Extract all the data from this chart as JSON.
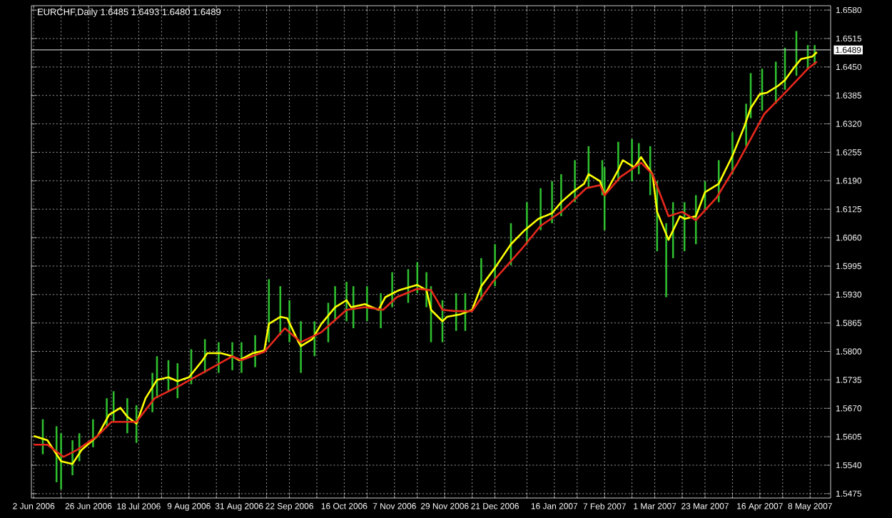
{
  "chart_data": {
    "type": "line",
    "title": "EURCHF,Daily  1.6485 1.6493 1.6480 1.6489",
    "xlim": [
      "2006-06-01",
      "2007-05-17"
    ],
    "ylim": [
      1.5465,
      1.659
    ],
    "xticks": [
      {
        "value": "2006-06-02",
        "label": "2 Jun 2006"
      },
      {
        "value": "2006-06-14",
        "label": null
      },
      {
        "value": "2006-06-26",
        "label": "26 Jun 2006"
      },
      {
        "value": "2006-07-06",
        "label": null
      },
      {
        "value": "2006-07-18",
        "label": "18 Jul 2006"
      },
      {
        "value": "2006-07-28",
        "label": null
      },
      {
        "value": "2006-08-09",
        "label": "9 Aug 2006"
      },
      {
        "value": "2006-08-21",
        "label": null
      },
      {
        "value": "2006-08-31",
        "label": "31 Aug 2006"
      },
      {
        "value": "2006-09-12",
        "label": null
      },
      {
        "value": "2006-09-22",
        "label": "22 Sep 2006"
      },
      {
        "value": "2006-10-04",
        "label": null
      },
      {
        "value": "2006-10-16",
        "label": "16 Oct 2006"
      },
      {
        "value": "2006-10-26",
        "label": null
      },
      {
        "value": "2006-11-07",
        "label": "7 Nov 2006"
      },
      {
        "value": "2006-11-17",
        "label": null
      },
      {
        "value": "2006-11-29",
        "label": "29 Nov 2006"
      },
      {
        "value": "2006-12-11",
        "label": null
      },
      {
        "value": "2006-12-21",
        "label": "21 Dec 2006"
      },
      {
        "value": "2007-01-04",
        "label": null
      },
      {
        "value": "2007-01-16",
        "label": "16 Jan 2007"
      },
      {
        "value": "2007-01-26",
        "label": null
      },
      {
        "value": "2007-02-07",
        "label": "7 Feb 2007"
      },
      {
        "value": "2007-02-19",
        "label": null
      },
      {
        "value": "2007-03-01",
        "label": "1 Mar 2007"
      },
      {
        "value": "2007-03-13",
        "label": null
      },
      {
        "value": "2007-03-23",
        "label": "23 Mar 2007"
      },
      {
        "value": "2007-04-04",
        "label": null
      },
      {
        "value": "2007-04-16",
        "label": "16 Apr 2007"
      },
      {
        "value": "2007-04-26",
        "label": null
      },
      {
        "value": "2007-05-08",
        "label": "8 May 2007"
      }
    ],
    "yticks": [
      {
        "value": 1.5475,
        "label": "1.5475"
      },
      {
        "value": 1.554,
        "label": "1.5540"
      },
      {
        "value": 1.5605,
        "label": "1.5605"
      },
      {
        "value": 1.567,
        "label": "1.5670"
      },
      {
        "value": 1.5735,
        "label": "1.5735"
      },
      {
        "value": 1.58,
        "label": "1.5800"
      },
      {
        "value": 1.5865,
        "label": "1.5865"
      },
      {
        "value": 1.593,
        "label": "1.5930"
      },
      {
        "value": 1.5995,
        "label": "1.5995"
      },
      {
        "value": 1.606,
        "label": "1.6060"
      },
      {
        "value": 1.6125,
        "label": "1.6125"
      },
      {
        "value": 1.619,
        "label": "1.6190"
      },
      {
        "value": 1.6255,
        "label": "1.6255"
      },
      {
        "value": 1.632,
        "label": "1.6320"
      },
      {
        "value": 1.6385,
        "label": "1.6385"
      },
      {
        "value": 1.645,
        "label": "1.6450"
      },
      {
        "value": 1.6515,
        "label": "1.6515"
      },
      {
        "value": 1.658,
        "label": "1.6580"
      }
    ],
    "grid": true,
    "ref_lines": [
      {
        "axis": "y",
        "value": 1.6489,
        "label": "1.6489",
        "color": "#c0c0c0"
      }
    ],
    "series": [
      {
        "type": "bar",
        "color": "#2fbf2f",
        "x": [
          "2006-06-06",
          "2006-06-12",
          "2006-06-14",
          "2006-06-19",
          "2006-06-22",
          "2006-06-28",
          "2006-07-04",
          "2006-07-07",
          "2006-07-13",
          "2006-07-17",
          "2006-07-24",
          "2006-07-26",
          "2006-07-31",
          "2006-08-04",
          "2006-08-10",
          "2006-08-16",
          "2006-08-22",
          "2006-08-28",
          "2006-09-01",
          "2006-09-07",
          "2006-09-13",
          "2006-09-18",
          "2006-09-22",
          "2006-09-27",
          "2006-10-03",
          "2006-10-09",
          "2006-10-12",
          "2006-10-17",
          "2006-10-20",
          "2006-10-26",
          "2006-11-01",
          "2006-11-06",
          "2006-11-13",
          "2006-11-17",
          "2006-11-21",
          "2006-11-23",
          "2006-11-28",
          "2006-12-04",
          "2006-12-08",
          "2006-12-15",
          "2006-12-21",
          "2006-12-28",
          "2007-01-04",
          "2007-01-10",
          "2007-01-15",
          "2007-01-19",
          "2007-01-25",
          "2007-01-31",
          "2007-02-06",
          "2007-02-07",
          "2007-02-13",
          "2007-02-19",
          "2007-02-22",
          "2007-02-27",
          "2007-03-02",
          "2007-03-06",
          "2007-03-09",
          "2007-03-14",
          "2007-03-19",
          "2007-03-23",
          "2007-03-29",
          "2007-04-04",
          "2007-04-10",
          "2007-04-12",
          "2007-04-17",
          "2007-04-23",
          "2007-04-27",
          "2007-05-02",
          "2007-05-07",
          "2007-05-10"
        ],
        "base": [
          1.5565,
          1.5501,
          1.5485,
          1.5517,
          1.5549,
          1.5581,
          1.5629,
          1.5639,
          1.5613,
          1.5591,
          1.5661,
          1.5693,
          1.5709,
          1.5693,
          1.5725,
          1.5751,
          1.5751,
          1.5757,
          1.5751,
          1.5764,
          1.5821,
          1.5837,
          1.5821,
          1.5751,
          1.5789,
          1.5821,
          1.5869,
          1.5869,
          1.5853,
          1.5869,
          1.5853,
          1.5901,
          1.5911,
          1.5933,
          1.5901,
          1.5821,
          1.5821,
          1.5847,
          1.5847,
          1.5917,
          1.5949,
          1.5997,
          1.6045,
          1.6077,
          1.6093,
          1.6109,
          1.6141,
          1.6173,
          1.6157,
          1.6077,
          1.6189,
          1.6189,
          1.6205,
          1.6157,
          1.6029,
          1.5924,
          1.6013,
          1.6029,
          1.6045,
          1.6125,
          1.6141,
          1.6205,
          1.6269,
          1.6333,
          1.635,
          1.6366,
          1.6398,
          1.643,
          1.6446,
          1.6455
        ],
        "values": [
          0.008,
          0.0128,
          0.0128,
          0.008,
          0.0064,
          0.0064,
          0.0064,
          0.007,
          0.008,
          0.0086,
          0.009,
          0.0096,
          0.0071,
          0.008,
          0.008,
          0.0077,
          0.007,
          0.0064,
          0.007,
          0.0073,
          0.0144,
          0.0112,
          0.0096,
          0.0118,
          0.008,
          0.009,
          0.008,
          0.009,
          0.0096,
          0.008,
          0.008,
          0.008,
          0.0077,
          0.0071,
          0.008,
          0.0128,
          0.0096,
          0.0086,
          0.0086,
          0.0096,
          0.0096,
          0.0096,
          0.0096,
          0.0096,
          0.0096,
          0.0096,
          0.0096,
          0.0096,
          0.008,
          0.0144,
          0.009,
          0.0096,
          0.0071,
          0.0112,
          0.016,
          0.0169,
          0.0128,
          0.0112,
          0.0112,
          0.0064,
          0.0096,
          0.0096,
          0.0097,
          0.0103,
          0.0096,
          0.0096,
          0.0096,
          0.0102,
          0.0054,
          0.0045
        ]
      },
      {
        "color": "#ffff00",
        "x": [
          "2006-06-02",
          "2006-06-08",
          "2006-06-14",
          "2006-06-19",
          "2006-06-23",
          "2006-06-30",
          "2006-07-05",
          "2006-07-10",
          "2006-07-13",
          "2006-07-17",
          "2006-07-21",
          "2006-07-26",
          "2006-07-31",
          "2006-08-04",
          "2006-08-09",
          "2006-08-15",
          "2006-08-17",
          "2006-08-23",
          "2006-08-28",
          "2006-08-31",
          "2006-09-06",
          "2006-09-11",
          "2006-09-13",
          "2006-09-18",
          "2006-09-21",
          "2006-09-26",
          "2006-09-27",
          "2006-10-02",
          "2006-10-06",
          "2006-10-12",
          "2006-10-17",
          "2006-10-19",
          "2006-10-25",
          "2006-10-31",
          "2006-11-03",
          "2006-11-09",
          "2006-11-17",
          "2006-11-21",
          "2006-11-23",
          "2006-11-28",
          "2006-11-30",
          "2006-12-06",
          "2006-12-11",
          "2006-12-15",
          "2006-12-21",
          "2006-12-28",
          "2007-01-03",
          "2007-01-09",
          "2007-01-15",
          "2007-01-19",
          "2007-01-24",
          "2007-01-29",
          "2007-01-31",
          "2007-02-05",
          "2007-02-07",
          "2007-02-13",
          "2007-02-15",
          "2007-02-20",
          "2007-02-23",
          "2007-02-28",
          "2007-03-02",
          "2007-03-07",
          "2007-03-12",
          "2007-03-14",
          "2007-03-19",
          "2007-03-23",
          "2007-03-29",
          "2007-04-04",
          "2007-04-09",
          "2007-04-12",
          "2007-04-16",
          "2007-04-19",
          "2007-04-24",
          "2007-04-27",
          "2007-05-01",
          "2007-05-04",
          "2007-05-09",
          "2007-05-11"
        ],
        "values": [
          1.5607,
          1.5597,
          1.5549,
          1.5543,
          1.5575,
          1.5607,
          1.5655,
          1.5671,
          1.5651,
          1.5635,
          1.5693,
          1.5735,
          1.5741,
          1.5732,
          1.5741,
          1.578,
          1.5796,
          1.5796,
          1.5789,
          1.578,
          1.5796,
          1.5802,
          1.5863,
          1.5879,
          1.5876,
          1.5821,
          1.5812,
          1.5828,
          1.5863,
          1.5901,
          1.5917,
          1.5901,
          1.5908,
          1.5895,
          1.5924,
          1.594,
          1.5952,
          1.594,
          1.5895,
          1.5869,
          1.5879,
          1.5885,
          1.5895,
          1.5949,
          1.5991,
          1.6045,
          1.6077,
          1.6103,
          1.6116,
          1.6141,
          1.6164,
          1.6183,
          1.6205,
          1.6189,
          1.6157,
          1.6215,
          1.6237,
          1.6221,
          1.6244,
          1.6205,
          1.6119,
          1.6055,
          1.6109,
          1.6103,
          1.6109,
          1.6164,
          1.6183,
          1.6247,
          1.6311,
          1.6356,
          1.6388,
          1.6391,
          1.6407,
          1.642,
          1.6449,
          1.6468,
          1.6474,
          1.6484
        ]
      },
      {
        "color": "#e8281c",
        "x": [
          "2006-06-02",
          "2006-06-08",
          "2006-06-15",
          "2006-06-21",
          "2006-06-30",
          "2006-07-06",
          "2006-07-17",
          "2006-07-25",
          "2006-08-04",
          "2006-08-15",
          "2006-08-28",
          "2006-09-01",
          "2006-09-11",
          "2006-09-20",
          "2006-09-27",
          "2006-10-06",
          "2006-10-17",
          "2006-10-25",
          "2006-11-02",
          "2006-11-08",
          "2006-11-17",
          "2006-11-23",
          "2006-11-28",
          "2006-12-04",
          "2006-12-11",
          "2006-12-20",
          "2007-01-02",
          "2007-01-10",
          "2007-01-19",
          "2007-01-30",
          "2007-02-05",
          "2007-02-07",
          "2007-02-14",
          "2007-02-23",
          "2007-02-28",
          "2007-03-07",
          "2007-03-13",
          "2007-03-19",
          "2007-03-28",
          "2007-04-06",
          "2007-04-18",
          "2007-04-27",
          "2007-05-07",
          "2007-05-11"
        ],
        "values": [
          1.5587,
          1.5587,
          1.5559,
          1.5575,
          1.5607,
          1.5639,
          1.5639,
          1.5693,
          1.5719,
          1.5751,
          1.5789,
          1.578,
          1.5799,
          1.5853,
          1.5821,
          1.5844,
          1.5895,
          1.5901,
          1.5895,
          1.5924,
          1.5943,
          1.594,
          1.5895,
          1.5892,
          1.5892,
          1.5959,
          1.6036,
          1.6087,
          1.6119,
          1.6173,
          1.618,
          1.6157,
          1.6199,
          1.6231,
          1.6205,
          1.6109,
          1.6119,
          1.61,
          1.6151,
          1.6228,
          1.6343,
          1.6391,
          1.6446,
          1.6462
        ]
      }
    ]
  }
}
